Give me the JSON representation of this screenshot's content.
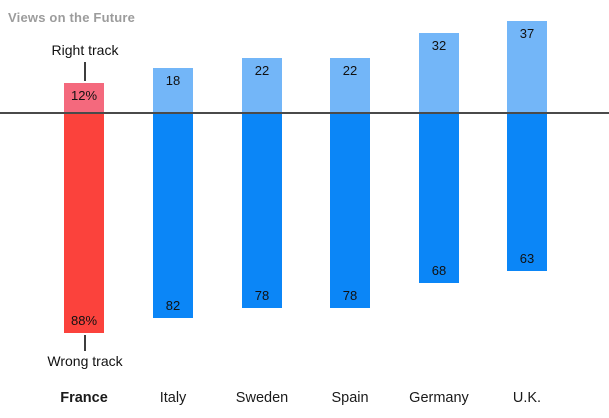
{
  "annotations": {
    "right_track_label": "Right track",
    "wrong_track_label": "Wrong track"
  },
  "colors": {
    "bar_up": "#73B6F8",
    "bar_down": "#0B86F7",
    "bar_up_highlight": "#F4697D",
    "bar_down_highlight": "#FB423C",
    "axis": "#4A4A4A",
    "title": "#9C9C9C",
    "text": "#111111"
  },
  "chart_data": {
    "type": "bar",
    "subtype": "diverging",
    "title": "Views on the Future",
    "categories": [
      "France",
      "Italy",
      "Sweden",
      "Spain",
      "Germany",
      "U.K."
    ],
    "series": [
      {
        "name": "Right track",
        "direction": "up",
        "values": [
          12,
          18,
          22,
          22,
          32,
          37
        ],
        "labels": [
          "12%",
          "18",
          "22",
          "22",
          "32",
          "37"
        ]
      },
      {
        "name": "Wrong track",
        "direction": "down",
        "values": [
          88,
          82,
          78,
          78,
          68,
          63
        ],
        "labels": [
          "88%",
          "82",
          "78",
          "78",
          "68",
          "63"
        ]
      }
    ],
    "baseline": 0,
    "unit": "percent",
    "highlight_category": "France",
    "grid": false,
    "legend_position": "none",
    "annotation_right_track": "Right track",
    "annotation_wrong_track": "Wrong track"
  }
}
